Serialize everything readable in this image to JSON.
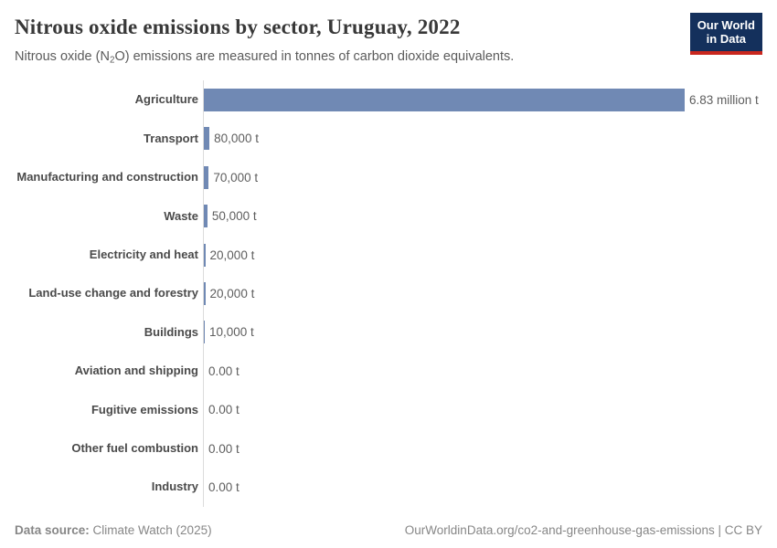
{
  "header": {
    "title": "Nitrous oxide emissions by sector, Uruguay, 2022",
    "subtitle_prefix": "Nitrous oxide (N",
    "subtitle_subscript": "2",
    "subtitle_suffix": "O) emissions are measured in tonnes of carbon dioxide equivalents.",
    "logo": {
      "line1": "Our World",
      "line2": "in Data",
      "background_color": "#14305c",
      "stripe_color": "#c9271e"
    }
  },
  "chart_data": {
    "type": "bar",
    "orientation": "horizontal",
    "title": "Nitrous oxide emissions by sector, Uruguay, 2022",
    "unit": "tonnes of carbon dioxide equivalents",
    "categories": [
      "Agriculture",
      "Transport",
      "Manufacturing and construction",
      "Waste",
      "Electricity and heat",
      "Land-use change and forestry",
      "Buildings",
      "Aviation and shipping",
      "Fugitive emissions",
      "Other fuel combustion",
      "Industry"
    ],
    "values": [
      6830000,
      80000,
      70000,
      50000,
      20000,
      20000,
      10000,
      0,
      0,
      0,
      0
    ],
    "value_labels": [
      "6.83 million t",
      "80,000 t",
      "70,000 t",
      "50,000 t",
      "20,000 t",
      "20,000 t",
      "10,000 t",
      "0.00 t",
      "0.00 t",
      "0.00 t",
      "0.00 t"
    ],
    "xlim": [
      0,
      6830000
    ],
    "bar_color": "#7089b4",
    "grid": "off",
    "legend": "none"
  },
  "footer": {
    "datasource_label": "Data source:",
    "datasource_value": " Climate Watch (2025)",
    "url": "OurWorldinData.org/co2-and-greenhouse-gas-emissions",
    "separator": " | ",
    "license": "CC BY"
  }
}
